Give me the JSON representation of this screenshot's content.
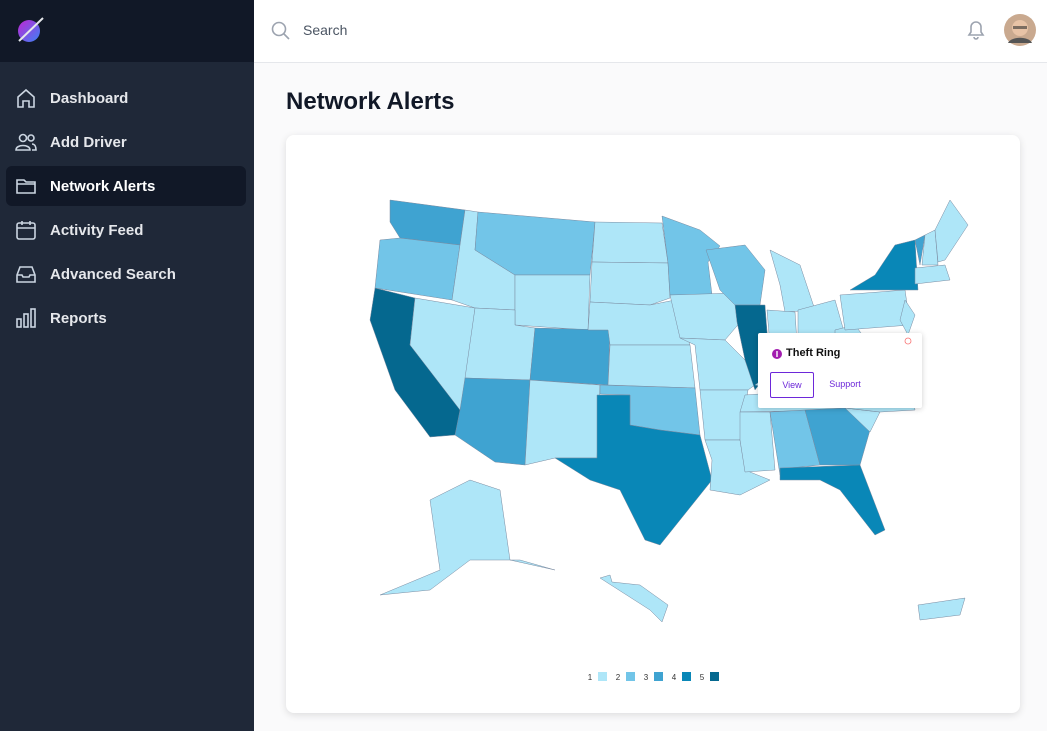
{
  "sidebar": {
    "nav": [
      "Dashboard",
      "Add Driver",
      "Network Alerts",
      "Activity Feed",
      "Advanced Search",
      "Reports"
    ],
    "active": 2
  },
  "header": {
    "search_placeholder": "Search"
  },
  "page": {
    "title": "Network Alerts"
  },
  "map": {
    "levels": [
      3,
      2,
      5,
      1,
      1,
      2,
      1,
      1,
      3,
      3,
      1,
      1,
      1,
      1,
      1,
      2,
      4,
      2,
      1,
      1,
      1,
      1,
      2,
      5,
      1,
      1,
      1,
      1,
      1,
      1,
      2,
      3,
      4,
      1,
      1,
      1,
      1,
      1,
      4,
      3,
      1,
      1,
      1,
      1,
      1,
      1,
      1
    ],
    "legend": [
      {
        "value": 1,
        "color": "#aee6f8"
      },
      {
        "value": 2,
        "color": "#72c5e8"
      },
      {
        "value": 3,
        "color": "#3fa3d1"
      },
      {
        "value": 4,
        "color": "#0987b7"
      },
      {
        "value": 5,
        "color": "#05688f"
      }
    ]
  },
  "popup": {
    "title": "Theft Ring",
    "actions": [
      "View",
      "Support"
    ]
  }
}
